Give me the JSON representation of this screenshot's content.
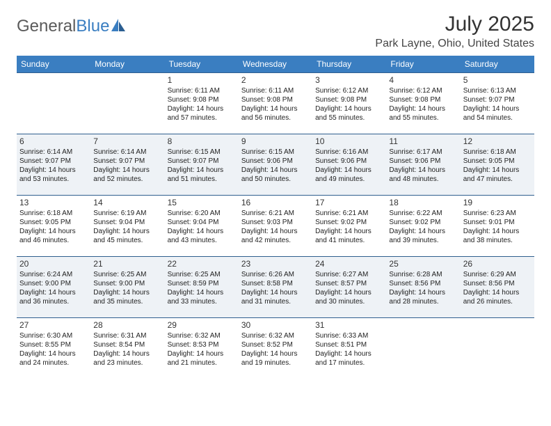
{
  "logo": {
    "part1": "General",
    "part2": "Blue"
  },
  "title": "July 2025",
  "subtitle": "Park Layne, Ohio, United States",
  "colors": {
    "header_bg": "#3a7ec1",
    "header_text": "#ffffff",
    "row_alt_bg": "#eef2f6",
    "border": "#2f5e8e",
    "logo_gray": "#5a5a5a",
    "logo_blue": "#3a7ec1"
  },
  "day_headers": [
    "Sunday",
    "Monday",
    "Tuesday",
    "Wednesday",
    "Thursday",
    "Friday",
    "Saturday"
  ],
  "weeks": [
    {
      "alt": false,
      "cells": [
        {
          "empty": true
        },
        {
          "empty": true
        },
        {
          "day": "1",
          "sunrise": "6:11 AM",
          "sunset": "9:08 PM",
          "daylight": "14 hours and 57 minutes."
        },
        {
          "day": "2",
          "sunrise": "6:11 AM",
          "sunset": "9:08 PM",
          "daylight": "14 hours and 56 minutes."
        },
        {
          "day": "3",
          "sunrise": "6:12 AM",
          "sunset": "9:08 PM",
          "daylight": "14 hours and 55 minutes."
        },
        {
          "day": "4",
          "sunrise": "6:12 AM",
          "sunset": "9:08 PM",
          "daylight": "14 hours and 55 minutes."
        },
        {
          "day": "5",
          "sunrise": "6:13 AM",
          "sunset": "9:07 PM",
          "daylight": "14 hours and 54 minutes."
        }
      ]
    },
    {
      "alt": true,
      "cells": [
        {
          "day": "6",
          "sunrise": "6:14 AM",
          "sunset": "9:07 PM",
          "daylight": "14 hours and 53 minutes."
        },
        {
          "day": "7",
          "sunrise": "6:14 AM",
          "sunset": "9:07 PM",
          "daylight": "14 hours and 52 minutes."
        },
        {
          "day": "8",
          "sunrise": "6:15 AM",
          "sunset": "9:07 PM",
          "daylight": "14 hours and 51 minutes."
        },
        {
          "day": "9",
          "sunrise": "6:15 AM",
          "sunset": "9:06 PM",
          "daylight": "14 hours and 50 minutes."
        },
        {
          "day": "10",
          "sunrise": "6:16 AM",
          "sunset": "9:06 PM",
          "daylight": "14 hours and 49 minutes."
        },
        {
          "day": "11",
          "sunrise": "6:17 AM",
          "sunset": "9:06 PM",
          "daylight": "14 hours and 48 minutes."
        },
        {
          "day": "12",
          "sunrise": "6:18 AM",
          "sunset": "9:05 PM",
          "daylight": "14 hours and 47 minutes."
        }
      ]
    },
    {
      "alt": false,
      "cells": [
        {
          "day": "13",
          "sunrise": "6:18 AM",
          "sunset": "9:05 PM",
          "daylight": "14 hours and 46 minutes."
        },
        {
          "day": "14",
          "sunrise": "6:19 AM",
          "sunset": "9:04 PM",
          "daylight": "14 hours and 45 minutes."
        },
        {
          "day": "15",
          "sunrise": "6:20 AM",
          "sunset": "9:04 PM",
          "daylight": "14 hours and 43 minutes."
        },
        {
          "day": "16",
          "sunrise": "6:21 AM",
          "sunset": "9:03 PM",
          "daylight": "14 hours and 42 minutes."
        },
        {
          "day": "17",
          "sunrise": "6:21 AM",
          "sunset": "9:02 PM",
          "daylight": "14 hours and 41 minutes."
        },
        {
          "day": "18",
          "sunrise": "6:22 AM",
          "sunset": "9:02 PM",
          "daylight": "14 hours and 39 minutes."
        },
        {
          "day": "19",
          "sunrise": "6:23 AM",
          "sunset": "9:01 PM",
          "daylight": "14 hours and 38 minutes."
        }
      ]
    },
    {
      "alt": true,
      "cells": [
        {
          "day": "20",
          "sunrise": "6:24 AM",
          "sunset": "9:00 PM",
          "daylight": "14 hours and 36 minutes."
        },
        {
          "day": "21",
          "sunrise": "6:25 AM",
          "sunset": "9:00 PM",
          "daylight": "14 hours and 35 minutes."
        },
        {
          "day": "22",
          "sunrise": "6:25 AM",
          "sunset": "8:59 PM",
          "daylight": "14 hours and 33 minutes."
        },
        {
          "day": "23",
          "sunrise": "6:26 AM",
          "sunset": "8:58 PM",
          "daylight": "14 hours and 31 minutes."
        },
        {
          "day": "24",
          "sunrise": "6:27 AM",
          "sunset": "8:57 PM",
          "daylight": "14 hours and 30 minutes."
        },
        {
          "day": "25",
          "sunrise": "6:28 AM",
          "sunset": "8:56 PM",
          "daylight": "14 hours and 28 minutes."
        },
        {
          "day": "26",
          "sunrise": "6:29 AM",
          "sunset": "8:56 PM",
          "daylight": "14 hours and 26 minutes."
        }
      ]
    },
    {
      "alt": false,
      "cells": [
        {
          "day": "27",
          "sunrise": "6:30 AM",
          "sunset": "8:55 PM",
          "daylight": "14 hours and 24 minutes."
        },
        {
          "day": "28",
          "sunrise": "6:31 AM",
          "sunset": "8:54 PM",
          "daylight": "14 hours and 23 minutes."
        },
        {
          "day": "29",
          "sunrise": "6:32 AM",
          "sunset": "8:53 PM",
          "daylight": "14 hours and 21 minutes."
        },
        {
          "day": "30",
          "sunrise": "6:32 AM",
          "sunset": "8:52 PM",
          "daylight": "14 hours and 19 minutes."
        },
        {
          "day": "31",
          "sunrise": "6:33 AM",
          "sunset": "8:51 PM",
          "daylight": "14 hours and 17 minutes."
        },
        {
          "empty": true
        },
        {
          "empty": true
        }
      ]
    }
  ],
  "labels": {
    "sunrise": "Sunrise:",
    "sunset": "Sunset:",
    "daylight": "Daylight:"
  }
}
